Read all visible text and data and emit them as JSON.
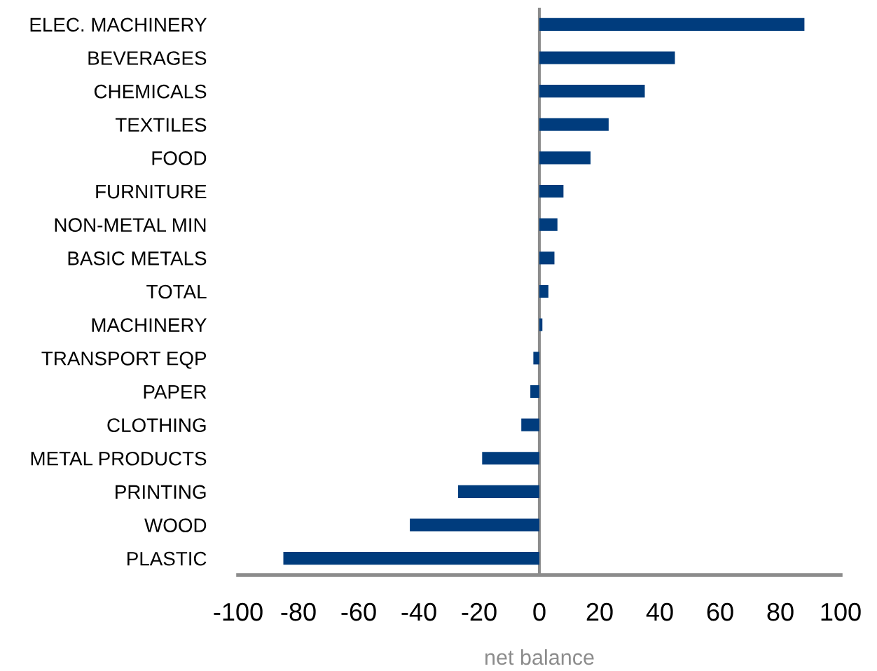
{
  "chart_data": {
    "type": "bar",
    "orientation": "horizontal",
    "xlabel": "net balance",
    "categories": [
      "ELEC. MACHINERY",
      "BEVERAGES",
      "CHEMICALS",
      "TEXTILES",
      "FOOD",
      "FURNITURE",
      "NON-METAL MIN",
      "BASIC METALS",
      "TOTAL",
      "MACHINERY",
      "TRANSPORT EQP",
      "PAPER",
      "CLOTHING",
      "METAL PRODUCTS",
      "PRINTING",
      "WOOD",
      "PLASTIC"
    ],
    "values": [
      88,
      45,
      35,
      23,
      17,
      8,
      6,
      5,
      3,
      1,
      -2,
      -3,
      -6,
      -19,
      -27,
      -43,
      -85
    ],
    "color": "#003c7d",
    "xlim": [
      -100,
      100
    ],
    "xticks": [
      -100,
      -80,
      -60,
      -40,
      -20,
      0,
      20,
      40,
      60,
      80,
      100
    ],
    "ref_lines": [
      {
        "axis": "x",
        "value": 0,
        "color": "#8c8c8c"
      }
    ],
    "legend": false
  }
}
